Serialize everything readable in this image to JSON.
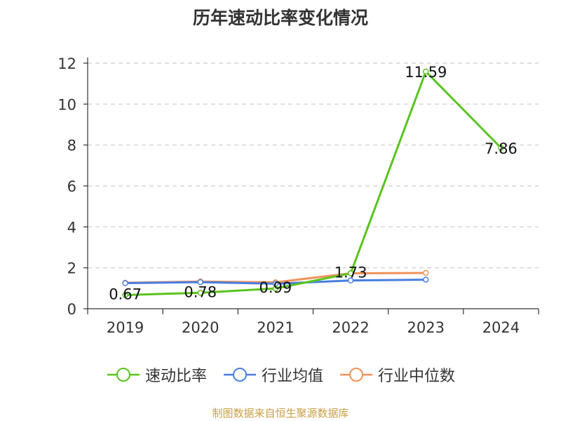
{
  "chart_data": {
    "type": "line",
    "title": "历年速动比率变化情况",
    "categories": [
      "2019",
      "2020",
      "2021",
      "2022",
      "2023",
      "2024"
    ],
    "ylim": [
      0,
      12
    ],
    "yticks": [
      0,
      2,
      4,
      6,
      8,
      10,
      12
    ],
    "grid": true,
    "legend_position": "bottom",
    "series": [
      {
        "name": "速动比率",
        "color": "#5ac31e",
        "values": [
          0.67,
          0.78,
          0.99,
          1.73,
          11.59,
          7.86
        ],
        "labels": [
          "0.67",
          "0.78",
          "0.99",
          "1.73",
          "11.59",
          "7.86"
        ]
      },
      {
        "name": "行业均值",
        "color": "#4a7ee0",
        "values": [
          1.25,
          1.3,
          1.22,
          1.38,
          1.42,
          null
        ]
      },
      {
        "name": "行业中位数",
        "color": "#f0925a",
        "values": [
          1.27,
          1.33,
          1.29,
          1.73,
          1.75,
          null
        ]
      }
    ]
  },
  "source": "制图数据来自恒生聚源数据库"
}
